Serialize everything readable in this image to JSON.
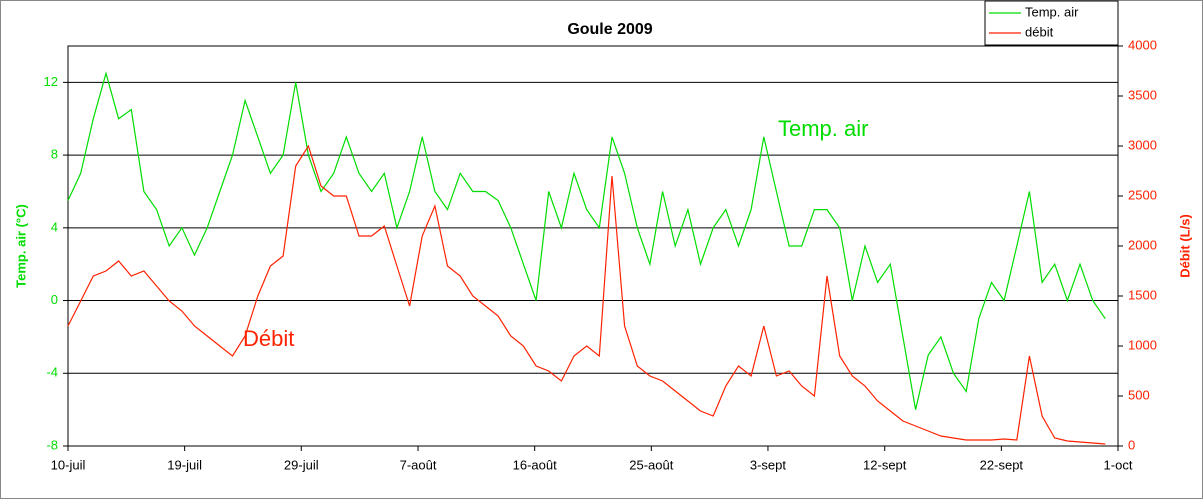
{
  "chart_data": {
    "type": "line",
    "title": "Goule 2009",
    "y_label": "Temp. air (°C)",
    "y2_label": "Débit (L/s)",
    "annotations": [
      "Temp. air",
      "Débit"
    ],
    "xlim": [
      0,
      83
    ],
    "xticks": [
      {
        "value": 0,
        "label": "10-juil"
      },
      {
        "value": 9.22,
        "label": "19-juil"
      },
      {
        "value": 18.44,
        "label": "29-juil"
      },
      {
        "value": 27.67,
        "label": "7-août"
      },
      {
        "value": 36.89,
        "label": "16-août"
      },
      {
        "value": 46.11,
        "label": "25-août"
      },
      {
        "value": 55.33,
        "label": "3-sept"
      },
      {
        "value": 64.56,
        "label": "12-sept"
      },
      {
        "value": 73.78,
        "label": "22-sept"
      },
      {
        "value": 83,
        "label": "1-oct"
      }
    ],
    "ylim": [
      -8,
      14
    ],
    "yticks": [
      -8,
      -4,
      0,
      4,
      8,
      12
    ],
    "y2lim": [
      0,
      4000
    ],
    "y2ticks": [
      0,
      500,
      1000,
      1500,
      2000,
      2500,
      3000,
      3500,
      4000
    ],
    "grid": true,
    "legend": "upper right",
    "x": [
      0,
      1,
      2,
      3,
      4,
      5,
      6,
      7,
      8,
      9,
      10,
      11,
      12,
      13,
      14,
      15,
      16,
      17,
      18,
      19,
      20,
      21,
      22,
      23,
      24,
      25,
      26,
      27,
      28,
      29,
      30,
      31,
      32,
      33,
      34,
      35,
      36,
      37,
      38,
      39,
      40,
      41,
      42,
      43,
      44,
      45,
      46,
      47,
      48,
      49,
      50,
      51,
      52,
      53,
      54,
      55,
      56,
      57,
      58,
      59,
      60,
      61,
      62,
      63,
      64,
      65,
      66,
      67,
      68,
      69,
      70,
      71,
      72,
      73,
      74,
      75,
      76,
      77,
      78,
      79,
      80,
      81,
      82
    ],
    "series": [
      {
        "name": "Temp. air",
        "color": "#00dd00",
        "axis": "y",
        "values": [
          5.5,
          7,
          10,
          12.5,
          10,
          10.5,
          6,
          5,
          3,
          4,
          2.5,
          4,
          6,
          8,
          11,
          9,
          7,
          8,
          12,
          8,
          6,
          7,
          9,
          7,
          6,
          7,
          4,
          6,
          9,
          6,
          5,
          7,
          6,
          6,
          5.5,
          4,
          2,
          0,
          6,
          4,
          7,
          5,
          4,
          9,
          7,
          4,
          2,
          6,
          3,
          5,
          2,
          4,
          5,
          3,
          5,
          9,
          6,
          3,
          3,
          5,
          5,
          4,
          0,
          3,
          1,
          2,
          -2,
          -6,
          -3,
          -2,
          -4,
          -5,
          -1,
          1,
          0,
          3,
          6,
          1,
          2,
          0,
          2,
          0,
          -1
        ]
      },
      {
        "name": "débit",
        "color": "#ff2200",
        "axis": "y2",
        "values": [
          1200,
          1450,
          1700,
          1750,
          1850,
          1700,
          1750,
          1600,
          1450,
          1350,
          1200,
          1100,
          1000,
          900,
          1100,
          1500,
          1800,
          1900,
          2800,
          3000,
          2600,
          2500,
          2500,
          2100,
          2100,
          2200,
          1800,
          1400,
          2100,
          2400,
          1800,
          1700,
          1500,
          1400,
          1300,
          1100,
          1000,
          800,
          750,
          650,
          900,
          1000,
          900,
          2700,
          1200,
          800,
          700,
          650,
          550,
          450,
          350,
          300,
          600,
          800,
          700,
          1200,
          700,
          750,
          600,
          500,
          1700,
          900,
          700,
          600,
          450,
          350,
          250,
          200,
          150,
          100,
          80,
          60,
          60,
          60,
          70,
          60,
          900,
          300,
          80,
          50,
          40,
          30,
          20
        ]
      }
    ]
  }
}
